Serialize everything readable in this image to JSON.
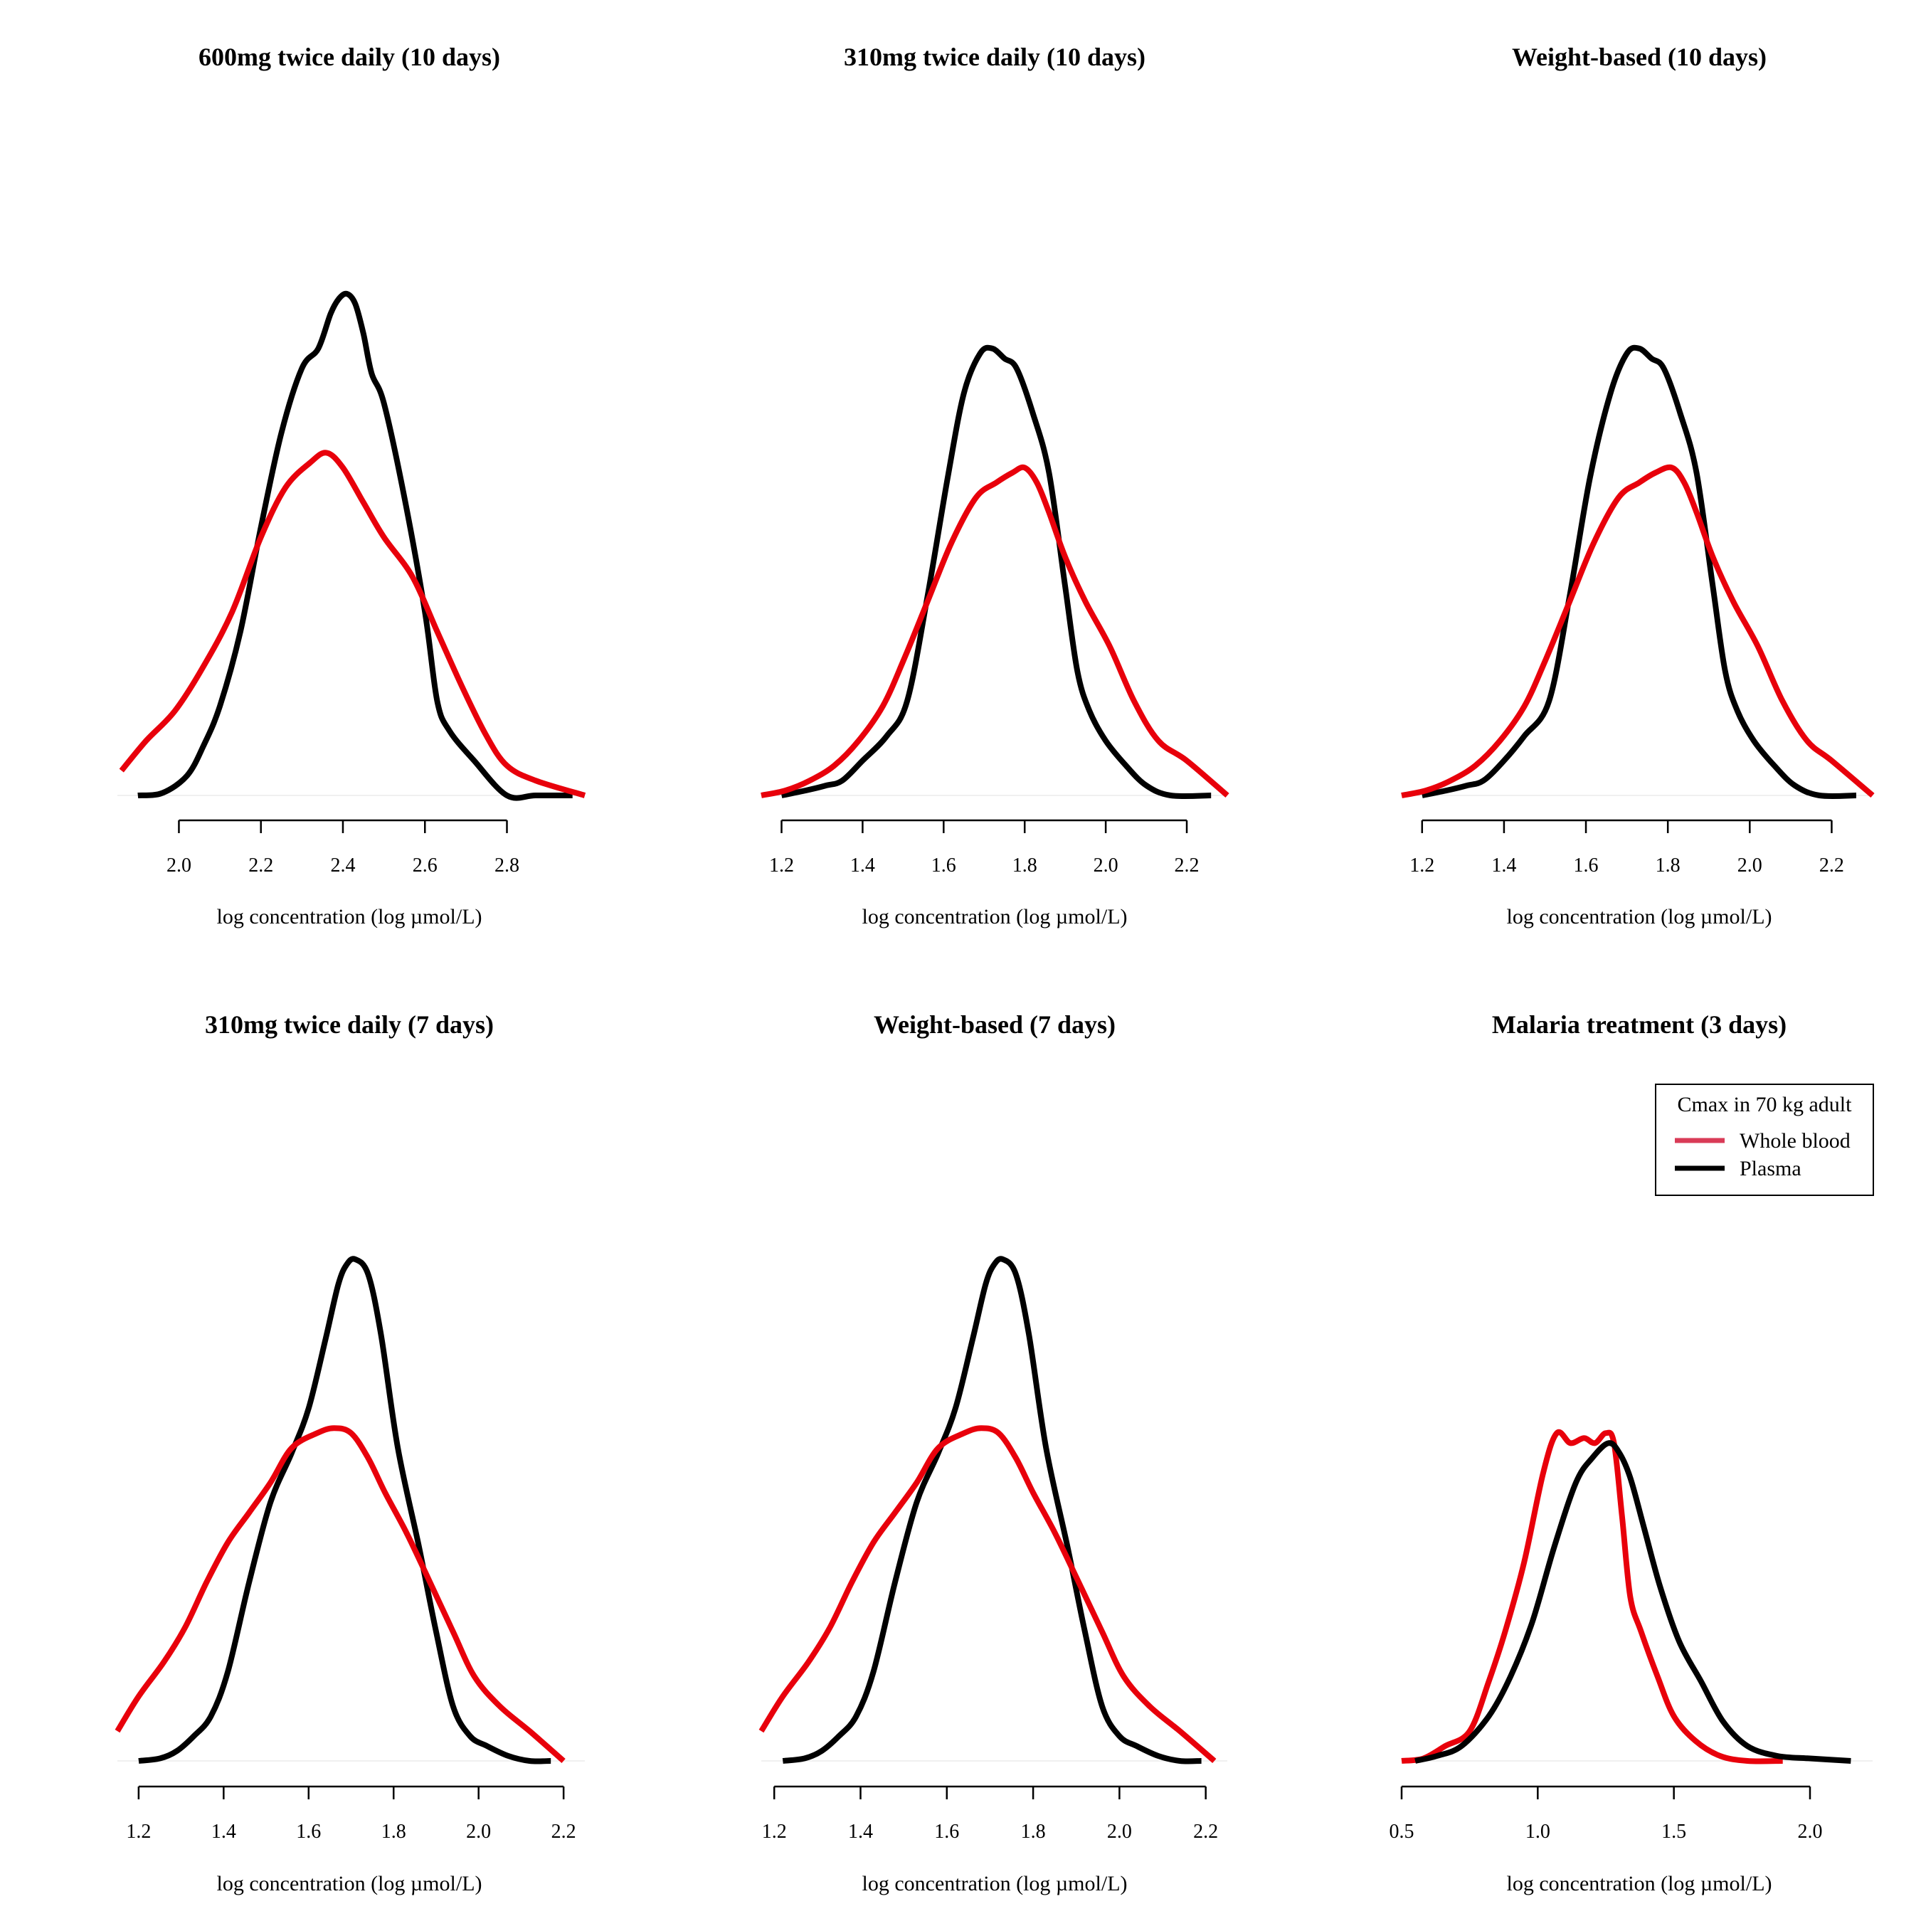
{
  "chart_data": [
    {
      "type": "line",
      "title": "600mg twice daily (10 days)",
      "xlabel": "log concentration (log µmol/L)",
      "ylabel": "",
      "xticks": [
        "2.0",
        "2.2",
        "2.4",
        "2.6",
        "2.8"
      ],
      "xtick_values": [
        2.0,
        2.2,
        2.4,
        2.6,
        2.8
      ],
      "xlim": [
        1.85,
        2.99
      ],
      "ylim": [
        0,
        1.0
      ],
      "series": [
        {
          "color": "#000000",
          "x": [
            1.9,
            1.96,
            2.02,
            2.06,
            2.1,
            2.15,
            2.2,
            2.25,
            2.3,
            2.34,
            2.37,
            2.39,
            2.41,
            2.43,
            2.45,
            2.47,
            2.5,
            2.55,
            2.6,
            2.63,
            2.66,
            2.72,
            2.8,
            2.87,
            2.96
          ],
          "y": [
            0.0,
            0.005,
            0.04,
            0.1,
            0.18,
            0.33,
            0.54,
            0.73,
            0.86,
            0.9,
            0.97,
            1.0,
            1.01,
            0.99,
            0.93,
            0.85,
            0.79,
            0.6,
            0.37,
            0.19,
            0.13,
            0.07,
            0.0,
            0.0,
            0.0
          ]
        },
        {
          "color": "#e8000b",
          "x": [
            1.86,
            1.92,
            1.99,
            2.06,
            2.13,
            2.2,
            2.26,
            2.32,
            2.36,
            2.4,
            2.45,
            2.5,
            2.57,
            2.63,
            2.69,
            2.75,
            2.8,
            2.87,
            2.99
          ],
          "y": [
            0.05,
            0.11,
            0.17,
            0.26,
            0.37,
            0.52,
            0.62,
            0.67,
            0.69,
            0.66,
            0.59,
            0.52,
            0.44,
            0.33,
            0.22,
            0.12,
            0.06,
            0.03,
            0.0
          ]
        }
      ]
    },
    {
      "type": "line",
      "title": "310mg twice daily (10 days)",
      "xlabel": "log concentration (log µmol/L)",
      "ylabel": "",
      "xticks": [
        "1.2",
        "1.4",
        "1.6",
        "1.8",
        "2.0",
        "2.2"
      ],
      "xtick_values": [
        1.2,
        1.4,
        1.6,
        1.8,
        2.0,
        2.2
      ],
      "xlim": [
        1.15,
        2.3
      ],
      "ylim": [
        0,
        1.0
      ],
      "series": [
        {
          "color": "#000000",
          "x": [
            1.2,
            1.26,
            1.31,
            1.35,
            1.4,
            1.46,
            1.51,
            1.56,
            1.61,
            1.65,
            1.69,
            1.72,
            1.75,
            1.78,
            1.82,
            1.86,
            1.9,
            1.93,
            1.96,
            2.0,
            2.05,
            2.1,
            2.16,
            2.26
          ],
          "y": [
            0.0,
            0.01,
            0.02,
            0.03,
            0.07,
            0.12,
            0.19,
            0.4,
            0.64,
            0.81,
            0.89,
            0.9,
            0.88,
            0.86,
            0.77,
            0.65,
            0.42,
            0.25,
            0.17,
            0.11,
            0.06,
            0.02,
            0.0,
            0.0
          ]
        },
        {
          "color": "#e8000b",
          "x": [
            1.15,
            1.21,
            1.27,
            1.33,
            1.39,
            1.45,
            1.5,
            1.56,
            1.62,
            1.68,
            1.73,
            1.77,
            1.8,
            1.83,
            1.86,
            1.9,
            1.95,
            2.01,
            2.07,
            2.13,
            2.2,
            2.3
          ],
          "y": [
            0.0,
            0.01,
            0.03,
            0.06,
            0.11,
            0.18,
            0.27,
            0.39,
            0.51,
            0.6,
            0.63,
            0.65,
            0.66,
            0.63,
            0.57,
            0.48,
            0.39,
            0.3,
            0.19,
            0.11,
            0.07,
            0.0
          ]
        }
      ]
    },
    {
      "type": "line",
      "title": "Weight-based (10 days)",
      "xlabel": "log concentration (log µmol/L)",
      "ylabel": "",
      "xticks": [
        "1.2",
        "1.4",
        "1.6",
        "1.8",
        "2.0",
        "2.2"
      ],
      "xtick_values": [
        1.2,
        1.4,
        1.6,
        1.8,
        2.0,
        2.2
      ],
      "xlim": [
        1.15,
        2.3
      ],
      "ylim": [
        0,
        1.0
      ],
      "series": [
        {
          "color": "#000000",
          "x": [
            1.2,
            1.26,
            1.31,
            1.35,
            1.4,
            1.45,
            1.51,
            1.56,
            1.61,
            1.66,
            1.7,
            1.73,
            1.76,
            1.79,
            1.83,
            1.87,
            1.91,
            1.94,
            1.97,
            2.01,
            2.06,
            2.11,
            2.17,
            2.26
          ],
          "y": [
            0.0,
            0.01,
            0.02,
            0.03,
            0.07,
            0.12,
            0.19,
            0.4,
            0.64,
            0.81,
            0.89,
            0.9,
            0.88,
            0.86,
            0.77,
            0.65,
            0.42,
            0.25,
            0.17,
            0.11,
            0.06,
            0.02,
            0.0,
            0.0
          ]
        },
        {
          "color": "#e8000b",
          "x": [
            1.15,
            1.21,
            1.27,
            1.33,
            1.39,
            1.45,
            1.5,
            1.56,
            1.62,
            1.68,
            1.73,
            1.77,
            1.81,
            1.84,
            1.87,
            1.91,
            1.96,
            2.02,
            2.08,
            2.14,
            2.2,
            2.3
          ],
          "y": [
            0.0,
            0.01,
            0.03,
            0.06,
            0.11,
            0.18,
            0.27,
            0.39,
            0.51,
            0.6,
            0.63,
            0.65,
            0.66,
            0.63,
            0.57,
            0.48,
            0.39,
            0.3,
            0.19,
            0.11,
            0.07,
            0.0
          ]
        }
      ]
    },
    {
      "type": "line",
      "title": "310mg twice daily (7 days)",
      "xlabel": "log concentration (log µmol/L)",
      "ylabel": "",
      "xticks": [
        "1.2",
        "1.4",
        "1.6",
        "1.8",
        "2.0",
        "2.2"
      ],
      "xtick_values": [
        1.2,
        1.4,
        1.6,
        1.8,
        2.0,
        2.2
      ],
      "xlim": [
        1.15,
        2.25
      ],
      "ylim": [
        0,
        1.0
      ],
      "series": [
        {
          "color": "#000000",
          "x": [
            1.2,
            1.25,
            1.29,
            1.33,
            1.37,
            1.41,
            1.46,
            1.51,
            1.56,
            1.6,
            1.64,
            1.67,
            1.69,
            1.71,
            1.74,
            1.77,
            1.81,
            1.86,
            1.9,
            1.94,
            1.98,
            2.02,
            2.07,
            2.12,
            2.17
          ],
          "y": [
            0.0,
            0.005,
            0.02,
            0.05,
            0.09,
            0.18,
            0.36,
            0.52,
            0.62,
            0.71,
            0.85,
            0.96,
            1.0,
            1.01,
            0.98,
            0.86,
            0.63,
            0.43,
            0.26,
            0.11,
            0.05,
            0.03,
            0.01,
            0.0,
            0.0
          ]
        },
        {
          "color": "#e8000b",
          "x": [
            1.15,
            1.2,
            1.26,
            1.31,
            1.36,
            1.41,
            1.46,
            1.51,
            1.56,
            1.62,
            1.66,
            1.7,
            1.74,
            1.78,
            1.83,
            1.88,
            1.94,
            1.99,
            2.05,
            2.12,
            2.2
          ],
          "y": [
            0.06,
            0.13,
            0.2,
            0.27,
            0.36,
            0.44,
            0.5,
            0.56,
            0.63,
            0.66,
            0.67,
            0.66,
            0.61,
            0.54,
            0.46,
            0.37,
            0.26,
            0.17,
            0.11,
            0.06,
            0.0
          ]
        }
      ]
    },
    {
      "type": "line",
      "title": "Weight-based (7 days)",
      "xlabel": "log concentration (log µmol/L)",
      "ylabel": "",
      "xticks": [
        "1.2",
        "1.4",
        "1.6",
        "1.8",
        "2.0",
        "2.2"
      ],
      "xtick_values": [
        1.2,
        1.4,
        1.6,
        1.8,
        2.0,
        2.2
      ],
      "xlim": [
        1.17,
        2.25
      ],
      "ylim": [
        0,
        1.0
      ],
      "series": [
        {
          "color": "#000000",
          "x": [
            1.22,
            1.27,
            1.31,
            1.35,
            1.39,
            1.43,
            1.48,
            1.53,
            1.58,
            1.62,
            1.66,
            1.69,
            1.71,
            1.73,
            1.76,
            1.79,
            1.83,
            1.88,
            1.92,
            1.96,
            2.0,
            2.04,
            2.09,
            2.14,
            2.19
          ],
          "y": [
            0.0,
            0.005,
            0.02,
            0.05,
            0.09,
            0.18,
            0.36,
            0.52,
            0.62,
            0.71,
            0.85,
            0.96,
            1.0,
            1.01,
            0.98,
            0.86,
            0.63,
            0.43,
            0.26,
            0.11,
            0.05,
            0.03,
            0.01,
            0.0,
            0.0
          ]
        },
        {
          "color": "#e8000b",
          "x": [
            1.17,
            1.22,
            1.28,
            1.33,
            1.38,
            1.43,
            1.48,
            1.53,
            1.58,
            1.64,
            1.68,
            1.72,
            1.76,
            1.8,
            1.85,
            1.9,
            1.96,
            2.01,
            2.07,
            2.14,
            2.22
          ],
          "y": [
            0.06,
            0.13,
            0.2,
            0.27,
            0.36,
            0.44,
            0.5,
            0.56,
            0.63,
            0.66,
            0.67,
            0.66,
            0.61,
            0.54,
            0.46,
            0.37,
            0.26,
            0.17,
            0.11,
            0.06,
            0.0
          ]
        }
      ]
    },
    {
      "type": "line",
      "title": "Malaria treatment (3 days)",
      "xlabel": "log concentration (log µmol/L)",
      "ylabel": "",
      "xticks": [
        "0.5",
        "1.0",
        "1.5",
        "2.0"
      ],
      "xtick_values": [
        0.5,
        1.0,
        1.5,
        2.0
      ],
      "xlim": [
        0.5,
        2.23
      ],
      "ylim": [
        0,
        1.0
      ],
      "legend": {
        "title": "Cmax in 70 kg adult",
        "position": "top-right",
        "entries": [
          {
            "label": "Whole blood",
            "color": "#d93b57"
          },
          {
            "label": "Plasma",
            "color": "#000000"
          }
        ]
      },
      "series": [
        {
          "color": "#e8000b",
          "x": [
            0.5,
            0.58,
            0.66,
            0.75,
            0.82,
            0.88,
            0.95,
            1.02,
            1.07,
            1.12,
            1.17,
            1.21,
            1.25,
            1.28,
            1.31,
            1.34,
            1.38,
            1.44,
            1.5,
            1.58,
            1.67,
            1.77,
            1.9
          ],
          "y": [
            0.0,
            0.005,
            0.03,
            0.06,
            0.16,
            0.26,
            0.4,
            0.58,
            0.66,
            0.64,
            0.65,
            0.64,
            0.66,
            0.64,
            0.49,
            0.33,
            0.26,
            0.17,
            0.09,
            0.04,
            0.01,
            0.0,
            0.0
          ]
        },
        {
          "color": "#000000",
          "x": [
            0.55,
            0.63,
            0.72,
            0.82,
            0.9,
            0.98,
            1.06,
            1.14,
            1.2,
            1.26,
            1.3,
            1.34,
            1.39,
            1.45,
            1.52,
            1.6,
            1.68,
            1.77,
            1.88,
            2.0,
            2.15
          ],
          "y": [
            0.0,
            0.01,
            0.03,
            0.09,
            0.17,
            0.28,
            0.43,
            0.56,
            0.61,
            0.64,
            0.62,
            0.57,
            0.47,
            0.35,
            0.24,
            0.16,
            0.08,
            0.03,
            0.01,
            0.005,
            0.0
          ]
        }
      ]
    }
  ]
}
